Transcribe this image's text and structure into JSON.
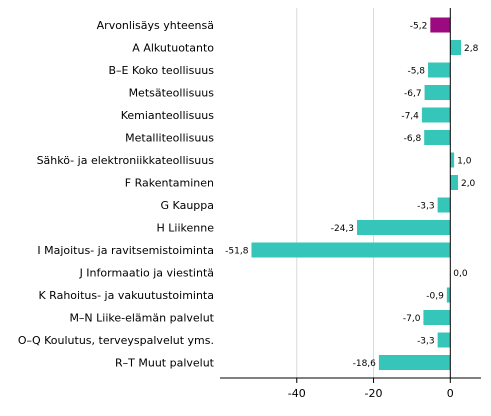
{
  "chart_data": {
    "type": "bar",
    "orientation": "horizontal",
    "categories": [
      "Arvonlisäys yhteensä",
      "A Alkutuotanto",
      "B–E Koko teollisuus",
      "Metsäteollisuus",
      "Kemianteollisuus",
      "Metalliteollisuus",
      "Sähkö- ja elektroniikkateollisuus",
      "F Rakentaminen",
      "G Kauppa",
      "H Liikenne",
      "I Majoitus- ja ravitsemistoiminta",
      "J Informaatio ja viestintä",
      "K Rahoitus- ja vakuutustoiminta",
      "M–N Liike-elämän palvelut",
      "O–Q Koulutus, terveyspalvelut yms.",
      "R–T Muut palvelut"
    ],
    "values": [
      -5.2,
      2.8,
      -5.8,
      -6.7,
      -7.4,
      -6.8,
      1.0,
      2.0,
      -3.3,
      -24.3,
      -51.8,
      0.0,
      -0.9,
      -7.0,
      -3.3,
      -18.6
    ],
    "value_labels": [
      "-5,2",
      "2,8",
      "-5,8",
      "-6,7",
      "-7,4",
      "-6,8",
      "1,0",
      "2,0",
      "-3,3",
      "-24,3",
      "-51,8",
      "0,0",
      "-0,9",
      "-7,0",
      "-3,3",
      "-18,6"
    ],
    "xlim": [
      -60,
      8
    ],
    "xticks": [
      -40,
      -20,
      0
    ],
    "xtick_labels": [
      "-40",
      "-20",
      "0"
    ],
    "grid": "vertical",
    "legend": "none",
    "colors": {
      "highlight": "#9b0a7e",
      "bar": "#36c5b9",
      "grid": "#d9d9d9",
      "axis": "#000000"
    },
    "highlight_index": 0
  }
}
